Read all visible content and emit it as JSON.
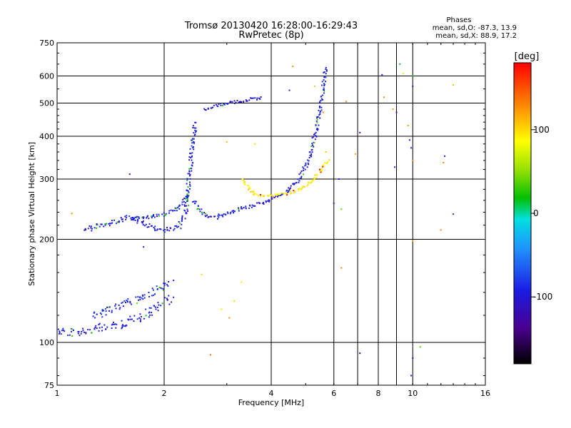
{
  "chart_data": {
    "type": "scatter",
    "title": "Tromsø 20130420 16:28:00-16:29:43",
    "subtitle": "RwPretec (8p)",
    "xlabel": "Frequency [MHz]",
    "ylabel": "Stationary phase Virtual Height [km]",
    "x_scale": "log",
    "y_scale": "log",
    "xlim": [
      1,
      16
    ],
    "ylim": [
      75,
      750
    ],
    "x_ticks": [
      "1",
      "2",
      "4",
      "6",
      "8",
      "10",
      "16"
    ],
    "x_gridlines": [
      2,
      4,
      6,
      7,
      8,
      9,
      10
    ],
    "y_ticks": [
      "75",
      "100",
      "200",
      "300",
      "400",
      "500",
      "600",
      "750"
    ],
    "y_gridlines": [
      100,
      200,
      300,
      400,
      500,
      600
    ],
    "grid": true,
    "phase_stats": {
      "heading": "Phases",
      "line_o": "mean, sd,O: -87.3, 13.9",
      "line_x": "mean, sd,X:  88.9, 17.2"
    },
    "colorbar": {
      "title": "[deg]",
      "range": [
        -180,
        180
      ],
      "ticks": [
        "100",
        "0",
        "-100"
      ],
      "tick_values": [
        100,
        0,
        -100
      ]
    },
    "traces": [
      {
        "desc_id": "E-layer",
        "f": [
          1.0,
          1.1,
          1.2,
          1.3,
          1.4,
          1.5,
          1.6,
          1.7,
          1.8,
          1.9,
          2.0,
          2.1
        ],
        "h": [
          108,
          107,
          108,
          110,
          111,
          113,
          115,
          118,
          122,
          126,
          130,
          136
        ],
        "phase": -95,
        "spread": 12
      },
      {
        "desc_id": "Es-upper",
        "f": [
          1.25,
          1.4,
          1.55,
          1.7,
          1.85,
          2.0,
          2.1
        ],
        "h": [
          118,
          124,
          130,
          135,
          140,
          145,
          150
        ],
        "phase": -90,
        "spread": 10
      },
      {
        "desc_id": "F1-O",
        "f": [
          1.2,
          1.4,
          1.6,
          1.75,
          1.9,
          2.0,
          2.2,
          2.3,
          2.35,
          2.4,
          2.45
        ],
        "h": [
          215,
          222,
          232,
          222,
          215,
          212,
          218,
          240,
          300,
          380,
          440
        ],
        "phase": -98,
        "spread": 6
      },
      {
        "desc_id": "F1-X",
        "f": [
          1.6,
          1.8,
          2.0,
          2.2,
          2.35
        ],
        "h": [
          230,
          232,
          236,
          248,
          270
        ],
        "phase": -95,
        "spread": 5
      },
      {
        "desc_id": "F2-O",
        "f": [
          2.4,
          2.6,
          2.8,
          3.0,
          3.3,
          3.6,
          4.0,
          4.4,
          4.8,
          5.1,
          5.3,
          5.5,
          5.6,
          5.7
        ],
        "h": [
          260,
          235,
          232,
          238,
          246,
          252,
          262,
          275,
          300,
          340,
          400,
          480,
          560,
          640
        ],
        "phase": -96,
        "spread": 5
      },
      {
        "desc_id": "F2-X",
        "f": [
          3.3,
          3.6,
          4.0,
          4.4,
          4.8,
          5.2,
          5.5,
          5.8
        ],
        "h": [
          300,
          270,
          268,
          272,
          280,
          295,
          315,
          345
        ],
        "phase": 92,
        "spread": 4
      },
      {
        "desc_id": "Oblique",
        "f": [
          2.6,
          2.9,
          3.2,
          3.5,
          3.8
        ],
        "h": [
          480,
          495,
          505,
          512,
          520
        ],
        "phase": -100,
        "spread": 4
      }
    ],
    "scattered_points": [
      {
        "f": 1.1,
        "h": 238,
        "phase": 130
      },
      {
        "f": 1.25,
        "h": 212,
        "phase": -105
      },
      {
        "f": 1.6,
        "h": 310,
        "phase": -100
      },
      {
        "f": 1.75,
        "h": 190,
        "phase": -90
      },
      {
        "f": 2.7,
        "h": 92,
        "phase": 140
      },
      {
        "f": 2.55,
        "h": 158,
        "phase": 100
      },
      {
        "f": 2.9,
        "h": 125,
        "phase": 95
      },
      {
        "f": 3.05,
        "h": 118,
        "phase": 130
      },
      {
        "f": 3.15,
        "h": 132,
        "phase": 100
      },
      {
        "f": 3.3,
        "h": 150,
        "phase": 95
      },
      {
        "f": 4.6,
        "h": 640,
        "phase": 130
      },
      {
        "f": 4.5,
        "h": 545,
        "phase": -100
      },
      {
        "f": 5.3,
        "h": 560,
        "phase": 110
      },
      {
        "f": 5.6,
        "h": 470,
        "phase": 130
      },
      {
        "f": 5.7,
        "h": 360,
        "phase": 110
      },
      {
        "f": 6.0,
        "h": 255,
        "phase": -90
      },
      {
        "f": 6.2,
        "h": 300,
        "phase": -92
      },
      {
        "f": 6.3,
        "h": 245,
        "phase": 40
      },
      {
        "f": 6.3,
        "h": 165,
        "phase": 130
      },
      {
        "f": 6.5,
        "h": 505,
        "phase": 130
      },
      {
        "f": 6.9,
        "h": 355,
        "phase": 120
      },
      {
        "f": 7.1,
        "h": 410,
        "phase": -100
      },
      {
        "f": 7.1,
        "h": 93,
        "phase": -150
      },
      {
        "f": 8.2,
        "h": 605,
        "phase": -90
      },
      {
        "f": 8.3,
        "h": 520,
        "phase": 130
      },
      {
        "f": 8.8,
        "h": 480,
        "phase": 120
      },
      {
        "f": 8.9,
        "h": 325,
        "phase": -100
      },
      {
        "f": 9.0,
        "h": 470,
        "phase": -110
      },
      {
        "f": 9.2,
        "h": 650,
        "phase": 10
      },
      {
        "f": 9.4,
        "h": 610,
        "phase": 80
      },
      {
        "f": 9.7,
        "h": 430,
        "phase": 120
      },
      {
        "f": 9.8,
        "h": 390,
        "phase": -100
      },
      {
        "f": 9.9,
        "h": 370,
        "phase": -110
      },
      {
        "f": 10.0,
        "h": 600,
        "phase": 20
      },
      {
        "f": 10.0,
        "h": 560,
        "phase": -110
      },
      {
        "f": 10.0,
        "h": 340,
        "phase": 130
      },
      {
        "f": 10.0,
        "h": 90,
        "phase": -105
      },
      {
        "f": 9.9,
        "h": 80,
        "phase": -100
      },
      {
        "f": 10.0,
        "h": 198,
        "phase": 110
      },
      {
        "f": 10.5,
        "h": 97,
        "phase": 40
      },
      {
        "f": 12.3,
        "h": 350,
        "phase": -100
      },
      {
        "f": 12.2,
        "h": 335,
        "phase": 130
      },
      {
        "f": 12.0,
        "h": 213,
        "phase": 130
      },
      {
        "f": 13.0,
        "h": 237,
        "phase": -100
      },
      {
        "f": 13.0,
        "h": 565,
        "phase": 110
      },
      {
        "f": 3.6,
        "h": 380,
        "phase": 100
      },
      {
        "f": 3.0,
        "h": 385,
        "phase": 110
      }
    ]
  }
}
